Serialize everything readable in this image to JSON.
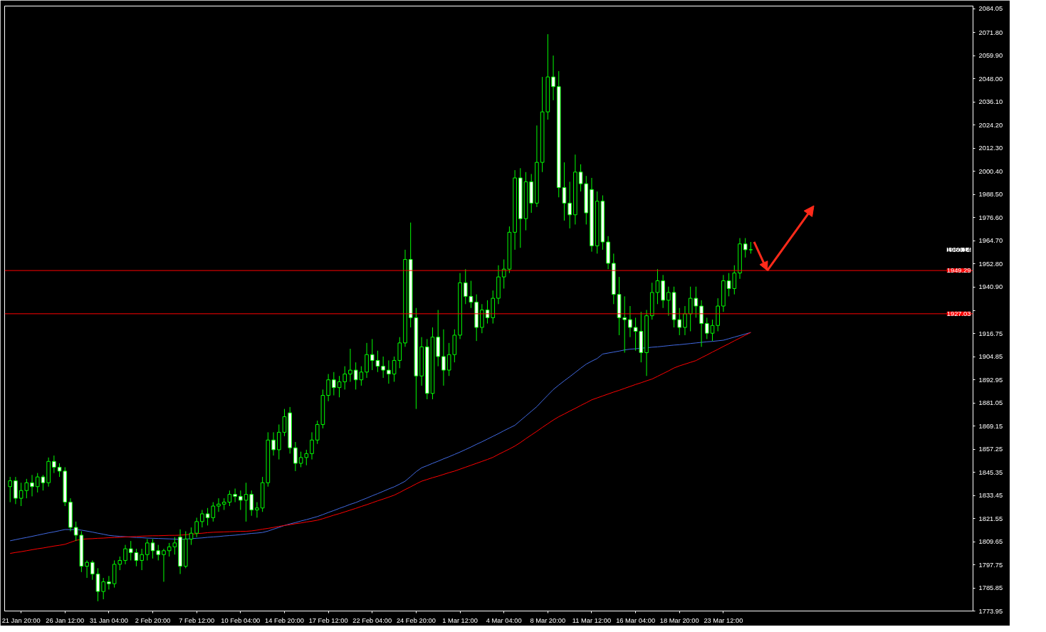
{
  "chart_data": {
    "type": "candlestick",
    "categories": [
      null,
      null,
      "21 Jan 20:00",
      null,
      null,
      null,
      null,
      null,
      null,
      null,
      "26 Jan 12:00",
      null,
      null,
      null,
      null,
      null,
      null,
      null,
      "31 Jan 04:00",
      null,
      null,
      null,
      null,
      null,
      null,
      null,
      "2 Feb 20:00",
      null,
      null,
      null,
      null,
      null,
      null,
      null,
      "7 Feb 12:00",
      null,
      null,
      null,
      null,
      null,
      null,
      null,
      "10 Feb 04:00",
      null,
      null,
      null,
      null,
      null,
      null,
      null,
      "14 Feb 20:00",
      null,
      null,
      null,
      null,
      null,
      null,
      null,
      "17 Feb 12:00",
      null,
      null,
      null,
      null,
      null,
      null,
      null,
      "22 Feb 04:00",
      null,
      null,
      null,
      null,
      null,
      null,
      null,
      "24 Feb 20:00",
      null,
      null,
      null,
      null,
      null,
      null,
      null,
      "1 Mar 12:00",
      null,
      null,
      null,
      null,
      null,
      null,
      null,
      "4 Mar 04:00",
      null,
      null,
      null,
      null,
      null,
      null,
      null,
      "8 Mar 20:00",
      null,
      null,
      null,
      null,
      null,
      null,
      null,
      "11 Mar 12:00",
      null,
      null,
      null,
      null,
      null,
      null,
      null,
      "16 Mar 04:00",
      null,
      null,
      null,
      null,
      null,
      null,
      null,
      "18 Mar 20:00",
      null,
      null,
      null,
      null,
      null,
      null,
      null,
      "23 Mar 12:00",
      null,
      null,
      null,
      null,
      null,
      null,
      null,
      null,
      null,
      null,
      null,
      null,
      null,
      null,
      null,
      null,
      null,
      null,
      null,
      null,
      null,
      null,
      null,
      null,
      null,
      null,
      null,
      null,
      null,
      null,
      null,
      null,
      null,
      null,
      null,
      null,
      null,
      null,
      null,
      null,
      null,
      null,
      null,
      null,
      null
    ],
    "ohlc": [
      [
        1838,
        1843,
        1830,
        1841
      ],
      [
        1841,
        1843,
        1829,
        1832
      ],
      [
        1832,
        1840,
        1828,
        1836
      ],
      [
        1836,
        1842,
        1832,
        1840
      ],
      [
        1840,
        1844,
        1833,
        1838
      ],
      [
        1838,
        1845,
        1835,
        1843
      ],
      [
        1843,
        1844,
        1836,
        1840
      ],
      [
        1840,
        1853,
        1838,
        1851
      ],
      [
        1851,
        1854,
        1845,
        1848
      ],
      [
        1848,
        1850,
        1843,
        1846
      ],
      [
        1846,
        1848,
        1828,
        1830
      ],
      [
        1830,
        1832,
        1815,
        1817
      ],
      [
        1817,
        1820,
        1810,
        1813
      ],
      [
        1813,
        1815,
        1794,
        1797
      ],
      [
        1797,
        1800,
        1791,
        1799
      ],
      [
        1799,
        1800,
        1790,
        1793
      ],
      [
        1793,
        1796,
        1779,
        1784
      ],
      [
        1784,
        1791,
        1780,
        1789
      ],
      [
        1789,
        1792,
        1785,
        1788
      ],
      [
        1788,
        1800,
        1786,
        1798
      ],
      [
        1798,
        1802,
        1795,
        1800
      ],
      [
        1800,
        1808,
        1798,
        1806
      ],
      [
        1806,
        1810,
        1800,
        1804
      ],
      [
        1804,
        1806,
        1797,
        1800
      ],
      [
        1800,
        1806,
        1795,
        1803
      ],
      [
        1803,
        1811,
        1800,
        1809
      ],
      [
        1809,
        1811,
        1801,
        1805
      ],
      [
        1805,
        1808,
        1800,
        1803
      ],
      [
        1803,
        1806,
        1789,
        1805
      ],
      [
        1805,
        1809,
        1802,
        1807
      ],
      [
        1807,
        1812,
        1803,
        1809
      ],
      [
        1812,
        1816,
        1793,
        1797
      ],
      [
        1797,
        1815,
        1796,
        1811
      ],
      [
        1811,
        1817,
        1808,
        1814
      ],
      [
        1814,
        1822,
        1812,
        1820
      ],
      [
        1820,
        1826,
        1817,
        1824
      ],
      [
        1824,
        1827,
        1818,
        1822
      ],
      [
        1822,
        1830,
        1820,
        1828
      ],
      [
        1828,
        1832,
        1825,
        1829
      ],
      [
        1829,
        1832,
        1826,
        1830
      ],
      [
        1830,
        1836,
        1828,
        1834
      ],
      [
        1834,
        1837,
        1830,
        1833
      ],
      [
        1833,
        1836,
        1826,
        1831
      ],
      [
        1831,
        1840,
        1820,
        1834
      ],
      [
        1834,
        1836,
        1823,
        1826
      ],
      [
        1826,
        1830,
        1822,
        1827
      ],
      [
        1827,
        1843,
        1825,
        1840
      ],
      [
        1840,
        1866,
        1838,
        1862
      ],
      [
        1862,
        1866,
        1854,
        1857
      ],
      [
        1857,
        1870,
        1852,
        1866
      ],
      [
        1866,
        1878,
        1864,
        1874
      ],
      [
        1876,
        1879,
        1855,
        1858
      ],
      [
        1858,
        1861,
        1846,
        1850
      ],
      [
        1850,
        1856,
        1848,
        1853
      ],
      [
        1853,
        1857,
        1849,
        1855
      ],
      [
        1855,
        1866,
        1852,
        1862
      ],
      [
        1862,
        1872,
        1860,
        1870
      ],
      [
        1870,
        1888,
        1868,
        1885
      ],
      [
        1885,
        1896,
        1882,
        1893
      ],
      [
        1893,
        1897,
        1885,
        1889
      ],
      [
        1889,
        1895,
        1884,
        1892
      ],
      [
        1892,
        1900,
        1888,
        1896
      ],
      [
        1896,
        1909,
        1892,
        1898
      ],
      [
        1898,
        1902,
        1888,
        1893
      ],
      [
        1893,
        1900,
        1890,
        1897
      ],
      [
        1897,
        1912,
        1894,
        1906
      ],
      [
        1906,
        1914,
        1898,
        1903
      ],
      [
        1903,
        1908,
        1897,
        1900
      ],
      [
        1900,
        1905,
        1894,
        1898
      ],
      [
        1898,
        1903,
        1891,
        1896
      ],
      [
        1896,
        1905,
        1892,
        1903
      ],
      [
        1903,
        1915,
        1899,
        1912
      ],
      [
        1912,
        1960,
        1910,
        1955
      ],
      [
        1955,
        1974,
        1920,
        1925
      ],
      [
        1925,
        1930,
        1878,
        1895
      ],
      [
        1895,
        1915,
        1890,
        1910
      ],
      [
        1910,
        1914,
        1883,
        1886
      ],
      [
        1886,
        1920,
        1883,
        1915
      ],
      [
        1915,
        1929,
        1900,
        1905
      ],
      [
        1905,
        1919,
        1890,
        1898
      ],
      [
        1898,
        1912,
        1895,
        1906
      ],
      [
        1906,
        1919,
        1902,
        1916
      ],
      [
        1916,
        1948,
        1914,
        1943
      ],
      [
        1943,
        1950,
        1932,
        1936
      ],
      [
        1936,
        1944,
        1930,
        1933
      ],
      [
        1933,
        1937,
        1913,
        1920
      ],
      [
        1920,
        1932,
        1917,
        1929
      ],
      [
        1929,
        1934,
        1922,
        1925
      ],
      [
        1925,
        1939,
        1922,
        1935
      ],
      [
        1935,
        1952,
        1932,
        1946
      ],
      [
        1946,
        1955,
        1940,
        1950
      ],
      [
        1950,
        1972,
        1948,
        1969
      ],
      [
        1969,
        2001,
        1960,
        1997
      ],
      [
        1997,
        2002,
        1961,
        1976
      ],
      [
        1976,
        2000,
        1970,
        1995
      ],
      [
        1995,
        1999,
        1979,
        1984
      ],
      [
        1984,
        2024,
        1982,
        2005
      ],
      [
        2005,
        2049,
        2000,
        2031
      ],
      [
        2031,
        2071,
        2027,
        2049
      ],
      [
        2049,
        2060,
        2037,
        2044
      ],
      [
        2044,
        2052,
        1987,
        1992
      ],
      [
        1992,
        2005,
        1975,
        1984
      ],
      [
        1984,
        1995,
        1971,
        1978
      ],
      [
        1978,
        2009,
        1973,
        2000
      ],
      [
        2000,
        2004,
        1990,
        1994
      ],
      [
        1994,
        1998,
        1973,
        1979
      ],
      [
        1991,
        1997,
        1959,
        1962
      ],
      [
        1962,
        1990,
        1958,
        1985
      ],
      [
        1985,
        1988,
        1960,
        1964
      ],
      [
        1964,
        1967,
        1950,
        1953
      ],
      [
        1953,
        1958,
        1932,
        1937
      ],
      [
        1937,
        1946,
        1916,
        1925
      ],
      [
        1925,
        1936,
        1907,
        1924
      ],
      [
        1924,
        1931,
        1915,
        1920
      ],
      [
        1920,
        1925,
        1908,
        1918
      ],
      [
        1918,
        1928,
        1902,
        1907
      ],
      [
        1907,
        1929,
        1895,
        1926
      ],
      [
        1926,
        1943,
        1924,
        1938
      ],
      [
        1938,
        1950,
        1932,
        1944
      ],
      [
        1944,
        1947,
        1930,
        1934
      ],
      [
        1934,
        1941,
        1926,
        1938
      ],
      [
        1938,
        1941,
        1920,
        1924
      ],
      [
        1924,
        1930,
        1916,
        1920
      ],
      [
        1920,
        1931,
        1916,
        1927
      ],
      [
        1927,
        1941,
        1918,
        1935
      ],
      [
        1935,
        1941,
        1925,
        1931
      ],
      [
        1931,
        1934,
        1910,
        1922
      ],
      [
        1922,
        1925,
        1914,
        1917
      ],
      [
        1917,
        1924,
        1913,
        1921
      ],
      [
        1921,
        1935,
        1918,
        1931
      ],
      [
        1931,
        1947,
        1928,
        1944
      ],
      [
        1944,
        1948,
        1936,
        1940
      ],
      [
        1940,
        1952,
        1937,
        1948
      ],
      [
        1948,
        1966,
        1945,
        1963
      ],
      [
        1963,
        1966,
        1956,
        1960
      ],
      [
        1960,
        1964,
        1958,
        1960
      ],
      null,
      null,
      null,
      null,
      null,
      null,
      null,
      null,
      null,
      null,
      null,
      null,
      null,
      null,
      null,
      null,
      null,
      null,
      null,
      null,
      null,
      null,
      null,
      null,
      null,
      null,
      null,
      null,
      null,
      null,
      null,
      null,
      null,
      null,
      null,
      null,
      null,
      null,
      null,
      null
    ],
    "color": "#00ff00",
    "series": [
      {
        "type": "line",
        "color": "#4169e1",
        "values": [
          1810.1,
          1810.7,
          1811.3,
          1811.8,
          1812.4,
          1813.0,
          1813.6,
          1814.2,
          1814.7,
          1815.3,
          1815.9,
          1815.9,
          1815.9,
          1815.6,
          1815.1,
          1814.6,
          1814.0,
          1813.5,
          1812.9,
          1812.6,
          1812.4,
          1812.2,
          1812.0,
          1811.8,
          1811.7,
          1811.5,
          1811.4,
          1811.3,
          1811.2,
          1811.1,
          1811.0,
          1810.8,
          1811.0,
          1811.2,
          1811.4,
          1811.6,
          1811.9,
          1812.1,
          1812.3,
          1812.6,
          1812.8,
          1813.0,
          1813.3,
          1813.6,
          1813.9,
          1814.1,
          1814.4,
          1815.1,
          1816.1,
          1817.0,
          1818.0,
          1818.8,
          1819.5,
          1820.3,
          1821.0,
          1821.8,
          1822.6,
          1823.6,
          1824.7,
          1825.7,
          1826.8,
          1827.8,
          1828.9,
          1829.8,
          1831.0,
          1832.1,
          1833.3,
          1834.4,
          1835.6,
          1836.8,
          1837.9,
          1839.3,
          1840.8,
          1843.2,
          1845.7,
          1847.7,
          1848.8,
          1850.0,
          1851.1,
          1852.3,
          1853.4,
          1854.6,
          1855.8,
          1857.1,
          1858.4,
          1859.8,
          1861.1,
          1862.5,
          1863.9,
          1865.3,
          1866.8,
          1868.2,
          1869.6,
          1872.0,
          1874.4,
          1876.8,
          1879.2,
          1882.2,
          1885.1,
          1888.0,
          1890.3,
          1892.5,
          1894.6,
          1896.8,
          1899.0,
          1901.1,
          1902.6,
          1904.0,
          1906.3,
          1906.8,
          1907.3,
          1907.8,
          1908.4,
          1908.8,
          1909.0,
          1909.3,
          1909.5,
          1909.8,
          1910.0,
          1910.3,
          1910.6,
          1910.9,
          1911.1,
          1911.4,
          1911.7,
          1912.0,
          1912.3,
          1912.6,
          1912.8,
          1913.1,
          1913.4,
          1914.2,
          1915.0,
          1915.8,
          1916.6,
          1917.4,
          null,
          null,
          null,
          null,
          null,
          null,
          null,
          null,
          null,
          null,
          null,
          null,
          null,
          null,
          null,
          null,
          null,
          null,
          null,
          null,
          null,
          null,
          null,
          null,
          null,
          null,
          null,
          null,
          null,
          null,
          null,
          null,
          null,
          null,
          null,
          null,
          null,
          null,
          null,
          null
        ]
      },
      {
        "type": "line",
        "color": "#ff0000",
        "values": [
          1803.6,
          1804.1,
          1804.5,
          1805.0,
          1805.5,
          1806.0,
          1806.4,
          1806.9,
          1807.4,
          1807.8,
          1808.3,
          1809.3,
          1810.3,
          1810.9,
          1811.1,
          1811.2,
          1811.4,
          1811.5,
          1811.7,
          1811.8,
          1811.9,
          1812.1,
          1812.2,
          1812.3,
          1812.5,
          1812.6,
          1812.7,
          1812.7,
          1812.8,
          1812.9,
          1812.9,
          1813.0,
          1813.2,
          1813.5,
          1813.8,
          1814.0,
          1814.3,
          1814.5,
          1814.6,
          1814.7,
          1814.8,
          1814.9,
          1815.0,
          1815.0,
          1815.2,
          1815.6,
          1816.1,
          1816.5,
          1817.0,
          1817.5,
          1818.0,
          1818.4,
          1818.9,
          1819.3,
          1819.8,
          1820.2,
          1820.7,
          1821.5,
          1822.4,
          1823.3,
          1824.1,
          1825.0,
          1825.9,
          1826.8,
          1827.8,
          1828.7,
          1829.7,
          1830.7,
          1831.6,
          1832.6,
          1833.6,
          1835.0,
          1836.5,
          1837.9,
          1839.4,
          1840.8,
          1841.7,
          1842.6,
          1843.4,
          1844.3,
          1845.2,
          1846.0,
          1847.0,
          1848.0,
          1849.0,
          1850.0,
          1851.0,
          1852.0,
          1853.1,
          1854.6,
          1856.0,
          1857.4,
          1858.9,
          1860.7,
          1862.7,
          1864.6,
          1866.5,
          1868.5,
          1870.4,
          1872.3,
          1874.0,
          1875.4,
          1876.9,
          1878.3,
          1879.8,
          1881.2,
          1882.7,
          1883.7,
          1884.7,
          1885.7,
          1886.7,
          1887.6,
          1888.6,
          1889.6,
          1890.6,
          1891.5,
          1892.5,
          1893.4,
          1894.8,
          1896.2,
          1897.6,
          1899.1,
          1900.2,
          1901.1,
          1902.0,
          1902.9,
          1904.4,
          1905.8,
          1907.3,
          1908.7,
          1910.2,
          1911.6,
          1913.1,
          1914.5,
          1916.0,
          1917.4,
          null,
          null,
          null,
          null,
          null,
          null,
          null,
          null,
          null,
          null,
          null,
          null,
          null,
          null,
          null,
          null,
          null,
          null,
          null,
          null,
          null,
          null,
          null,
          null,
          null,
          null,
          null,
          null,
          null,
          null,
          null,
          null,
          null,
          null,
          null,
          null,
          null,
          null,
          null,
          null
        ]
      }
    ],
    "ylim": [
      1773.95,
      2085.5
    ],
    "yticks": [
      {
        "value": 1773.95,
        "label": "1773.95"
      },
      {
        "value": 1785.85,
        "label": "1785.85"
      },
      {
        "value": 1797.75,
        "label": "1797.75"
      },
      {
        "value": 1809.65,
        "label": "1809.65"
      },
      {
        "value": 1821.55,
        "label": "1821.55"
      },
      {
        "value": 1833.45,
        "label": "1833.45"
      },
      {
        "value": 1845.35,
        "label": "1845.35"
      },
      {
        "value": 1857.25,
        "label": "1857.25"
      },
      {
        "value": 1869.15,
        "label": "1869.15"
      },
      {
        "value": 1881.05,
        "label": "1881.05"
      },
      {
        "value": 1892.95,
        "label": "1892.95"
      },
      {
        "value": 1904.85,
        "label": "1904.85"
      },
      {
        "value": 1916.75,
        "label": "1916.75"
      },
      {
        "value": 1928.8,
        "label": null
      },
      {
        "value": 1940.9,
        "label": "1940.90"
      },
      {
        "value": 1952.8,
        "label": "1952.80"
      },
      {
        "value": 1964.7,
        "label": "1964.70"
      },
      {
        "value": 1976.6,
        "label": "1976.60"
      },
      {
        "value": 1988.5,
        "label": "1988.50"
      },
      {
        "value": 2000.4,
        "label": "2000.40"
      },
      {
        "value": 2012.3,
        "label": "2012.30"
      },
      {
        "value": 2024.2,
        "label": "2024.20"
      },
      {
        "value": 2036.1,
        "label": "2036.10"
      },
      {
        "value": 2048.0,
        "label": "2048.00"
      },
      {
        "value": 2059.9,
        "label": "2059.90"
      },
      {
        "value": 2071.8,
        "label": "2071.80"
      },
      {
        "value": 2084.05,
        "label": "2084.05"
      }
    ],
    "ref_lines": [
      {
        "axis": "y",
        "value": 1949.29,
        "label": "1949.29",
        "color": "#ff0000"
      },
      {
        "axis": "y",
        "value": 1927.03,
        "label": "1927.03",
        "color": "#ff0000"
      }
    ],
    "annotations": [
      "1960.14"
    ],
    "grid": false
  }
}
